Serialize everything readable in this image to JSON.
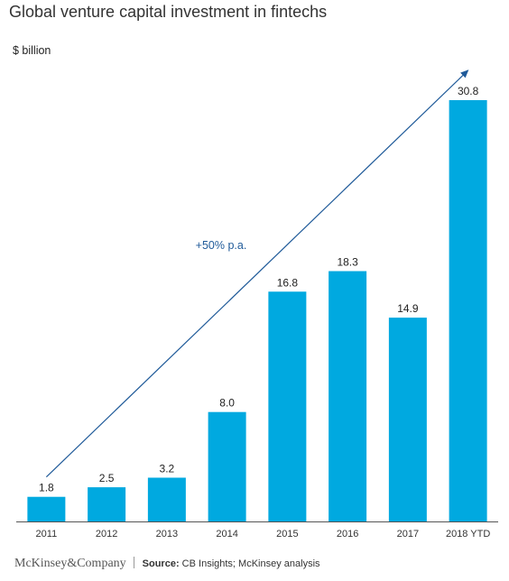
{
  "title": "Global venture capital investment in fintechs",
  "unit_label": "$ billion",
  "chart_data": {
    "type": "bar",
    "title": "Global venture capital investment in fintechs",
    "ylabel": "$ billion",
    "xlabel": "",
    "categories": [
      "2011",
      "2012",
      "2013",
      "2014",
      "2015",
      "2016",
      "2017",
      "2018 YTD"
    ],
    "values": [
      1.8,
      2.5,
      3.2,
      8.0,
      16.8,
      18.3,
      14.9,
      30.8
    ],
    "value_labels": [
      "1.8",
      "2.5",
      "3.2",
      "8.0",
      "16.8",
      "18.3",
      "14.9",
      "30.8"
    ],
    "ylim": [
      0,
      30.8
    ],
    "grid": false,
    "legend": "none",
    "bar_color": "#00A9E0",
    "annotation": {
      "text": "+50% p.a.",
      "color": "#1F5A99",
      "from_category": "2011",
      "to_category": "2018 YTD"
    }
  },
  "footer": {
    "brand": "McKinsey&Company",
    "source_label": "Source:",
    "source_text": " CB Insights; McKinsey analysis"
  }
}
